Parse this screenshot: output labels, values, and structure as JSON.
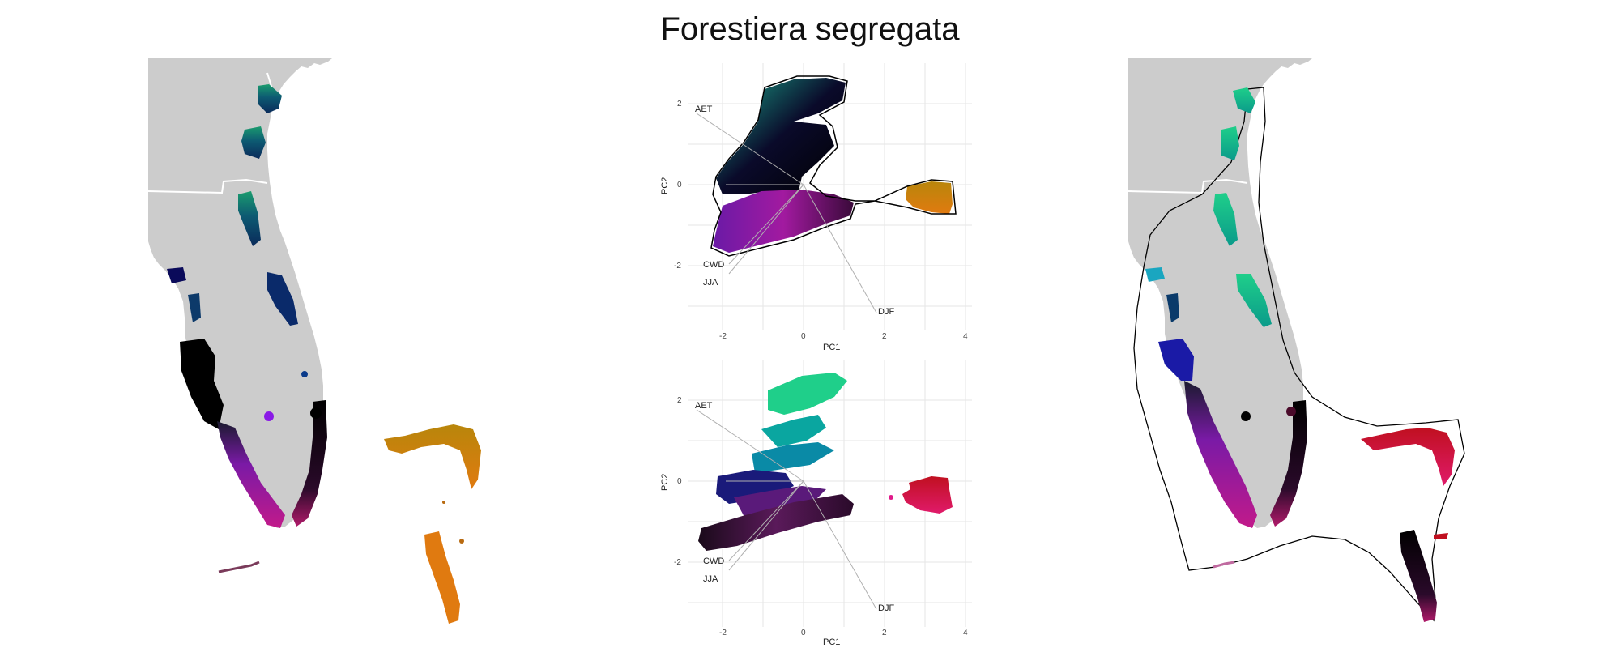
{
  "figure": {
    "title": "Forestiera segregata"
  },
  "colors": {
    "land": "#cccccc",
    "boundary": "#ffffff",
    "grid": "#e6e6e6",
    "outline": "#000000"
  },
  "pca_top": {
    "xlabel": "PC1",
    "ylabel": "PC2",
    "xticks": [
      "-2",
      "0",
      "2",
      "4"
    ],
    "yticks": [
      "2",
      "0",
      "-2"
    ],
    "vectors": [
      "AET",
      "CWD",
      "JJA",
      "DJF"
    ]
  },
  "pca_bottom": {
    "xlabel": "PC1",
    "ylabel": "PC2",
    "xticks": [
      "-2",
      "0",
      "2",
      "4"
    ],
    "yticks": [
      "2",
      "0",
      "-2"
    ],
    "vectors": [
      "AET",
      "CWD",
      "JJA",
      "DJF"
    ]
  }
}
